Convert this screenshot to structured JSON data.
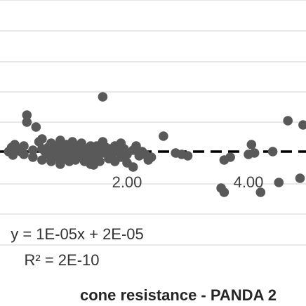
{
  "chart_data": {
    "type": "scatter",
    "xlabel": "cone resistance - PANDA 2",
    "x_tick_labels": [
      "2.00",
      "4.00"
    ],
    "xlim": [
      -0.05,
      5.2
    ],
    "ylim": [
      -0.000165,
      0.000125
    ],
    "grid": true,
    "trendline": {
      "style": "dashed",
      "color": "#000000",
      "equation": "y = 1E-05x + 2E-05",
      "r_squared": "R² = 2E-10"
    },
    "series": [
      {
        "color": "#595959",
        "points": [
          [
            0.05,
            2e-05
          ],
          [
            0.1,
            2.6e-05
          ],
          [
            0.15,
            3e-05
          ],
          [
            0.12,
            1.5e-05
          ],
          [
            0.2,
            2.4e-05
          ],
          [
            0.25,
            2e-05
          ],
          [
            0.3,
            2.8e-05
          ],
          [
            0.3,
            1.6e-05
          ],
          [
            0.35,
            6.2e-05
          ],
          [
            0.35,
            7.2e-05
          ],
          [
            0.5,
            5.5e-05
          ],
          [
            0.45,
            2.2e-05
          ],
          [
            0.45,
            1.2e-05
          ],
          [
            0.55,
            3.4e-05
          ],
          [
            0.6,
            2.4e-05
          ],
          [
            0.6,
            3.8e-05
          ],
          [
            0.6,
            8e-06
          ],
          [
            0.65,
            2e-05
          ],
          [
            0.7,
            2.6e-05
          ],
          [
            0.7,
            1.6e-05
          ],
          [
            0.75,
            6e-06
          ],
          [
            0.75,
            3.2e-05
          ],
          [
            0.8,
            1.8e-05
          ],
          [
            0.8,
            2.4e-05
          ],
          [
            0.85,
            2.8e-05
          ],
          [
            0.85,
            1.2e-05
          ],
          [
            0.9,
            2e-05
          ],
          [
            0.9,
            3.6e-05
          ],
          [
            0.95,
            2.4e-05
          ],
          [
            0.95,
            1e-05
          ],
          [
            1.0,
            1.8e-05
          ],
          [
            1.0,
            3e-05
          ],
          [
            1.05,
            2.2e-05
          ],
          [
            1.05,
            6e-06
          ],
          [
            1.1,
            1.6e-05
          ],
          [
            1.1,
            3.4e-05
          ],
          [
            1.15,
            2.6e-05
          ],
          [
            1.15,
            8e-06
          ],
          [
            1.2,
            2e-05
          ],
          [
            1.25,
            1.4e-05
          ],
          [
            1.25,
            3.2e-05
          ],
          [
            1.3,
            6e-06
          ],
          [
            1.3,
            2.4e-05
          ],
          [
            1.35,
            1.6e-05
          ],
          [
            1.4,
            2.8e-05
          ],
          [
            1.4,
            8e-06
          ],
          [
            1.45,
            2e-05
          ],
          [
            1.5,
            1.2e-05
          ],
          [
            1.5,
            2.8e-05
          ],
          [
            1.55,
            2.4e-05
          ],
          [
            1.55,
            6e-06
          ],
          [
            1.6,
            1.8e-05
          ],
          [
            1.6,
            3.4e-05
          ],
          [
            1.65,
            2.6e-05
          ],
          [
            1.7,
            1e-05
          ],
          [
            1.7,
            2.4e-05
          ],
          [
            1.75,
            1.6e-05
          ],
          [
            1.8,
            2.8e-05
          ],
          [
            1.8,
            6e-06
          ],
          [
            1.85,
            2e-05
          ],
          [
            1.9,
            1.2e-05
          ],
          [
            1.9,
            3.2e-05
          ],
          [
            1.95,
            2.4e-05
          ],
          [
            2.0,
            1.6e-05
          ],
          [
            2.0,
            4e-06
          ],
          [
            2.1,
            2.2e-05
          ],
          [
            2.15,
            2.8e-05
          ],
          [
            2.2,
            1.4e-05
          ],
          [
            2.25,
            2e-05
          ],
          [
            2.3,
            1.6e-05
          ],
          [
            2.35,
            8e-06
          ],
          [
            2.4,
            1.2e-05
          ],
          [
            1.4,
            2e-06
          ],
          [
            1.45,
            1e-06
          ],
          [
            0.9,
            2e-06
          ],
          [
            2.1,
            -2e-06
          ],
          [
            1.6,
            9.8e-05
          ],
          [
            2.6,
            4.2e-05
          ],
          [
            4.65,
            6.4e-05
          ],
          [
            4.9,
            5.8e-05
          ],
          [
            5.1,
            0.000118
          ],
          [
            5.1,
            -5.8e-05
          ],
          [
            4.0,
            1.6e-05
          ],
          [
            4.05,
            3e-05
          ],
          [
            4.1,
            1.8e-05
          ],
          [
            4.4,
            2e-05
          ],
          [
            4.5,
            -2.4e-05
          ],
          [
            3.6,
            8e-06
          ],
          [
            3.55,
            -3.2e-05
          ],
          [
            3.6,
            -3.8e-05
          ],
          [
            3.7,
            1.2e-05
          ],
          [
            4.2,
            -3.8e-05
          ],
          [
            4.85,
            -1.8e-05
          ],
          [
            2.8,
            1.8e-05
          ],
          [
            2.9,
            1.6e-05
          ],
          [
            3.0,
            1.4e-05
          ]
        ]
      }
    ]
  }
}
